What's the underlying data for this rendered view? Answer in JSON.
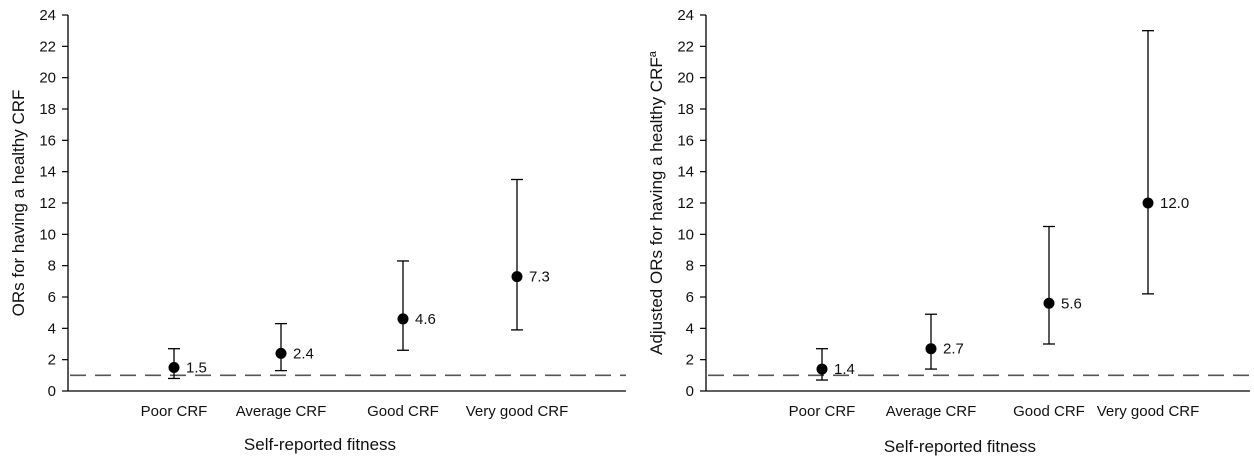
{
  "colors": {
    "ink": "#000000",
    "reference_line": "#555555",
    "background": "#ffffff"
  },
  "chart_data": [
    {
      "type": "scatter",
      "xlabel": "Self-reported fitness",
      "ylabel": "ORs for having a healthy CRF",
      "ylabel_superscript": "",
      "categories": [
        "Poor CRF",
        "Average CRF",
        "Good CRF",
        "Very good CRF"
      ],
      "values": [
        1.5,
        2.4,
        4.6,
        7.3
      ],
      "value_labels": [
        "1.5",
        "2.4",
        "4.6",
        "7.3"
      ],
      "ci_lower": [
        0.8,
        1.3,
        2.6,
        3.9
      ],
      "ci_upper": [
        2.7,
        4.3,
        8.3,
        13.5
      ],
      "ylim": [
        0,
        24
      ],
      "yticks": [
        "0",
        "2",
        "4",
        "6",
        "8",
        "10",
        "12",
        "14",
        "16",
        "18",
        "20",
        "22",
        "24"
      ],
      "reference_line": 1,
      "grid": false,
      "legend": "none"
    },
    {
      "type": "scatter",
      "xlabel": "Self-reported fitness",
      "ylabel": "Adjusted ORs for having a healthy CRF",
      "ylabel_superscript": "a",
      "categories": [
        "Poor CRF",
        "Average CRF",
        "Good CRF",
        "Very good CRF"
      ],
      "values": [
        1.4,
        2.7,
        5.6,
        12.0
      ],
      "value_labels": [
        "1.4",
        "2.7",
        "5.6",
        "12.0"
      ],
      "ci_lower": [
        0.7,
        1.4,
        3.0,
        6.2
      ],
      "ci_upper": [
        2.7,
        4.9,
        10.5,
        23.0
      ],
      "ylim": [
        0,
        24
      ],
      "yticks": [
        "0",
        "2",
        "4",
        "6",
        "8",
        "10",
        "12",
        "14",
        "16",
        "18",
        "20",
        "22",
        "24"
      ],
      "reference_line": 1,
      "grid": false,
      "legend": "none"
    }
  ]
}
